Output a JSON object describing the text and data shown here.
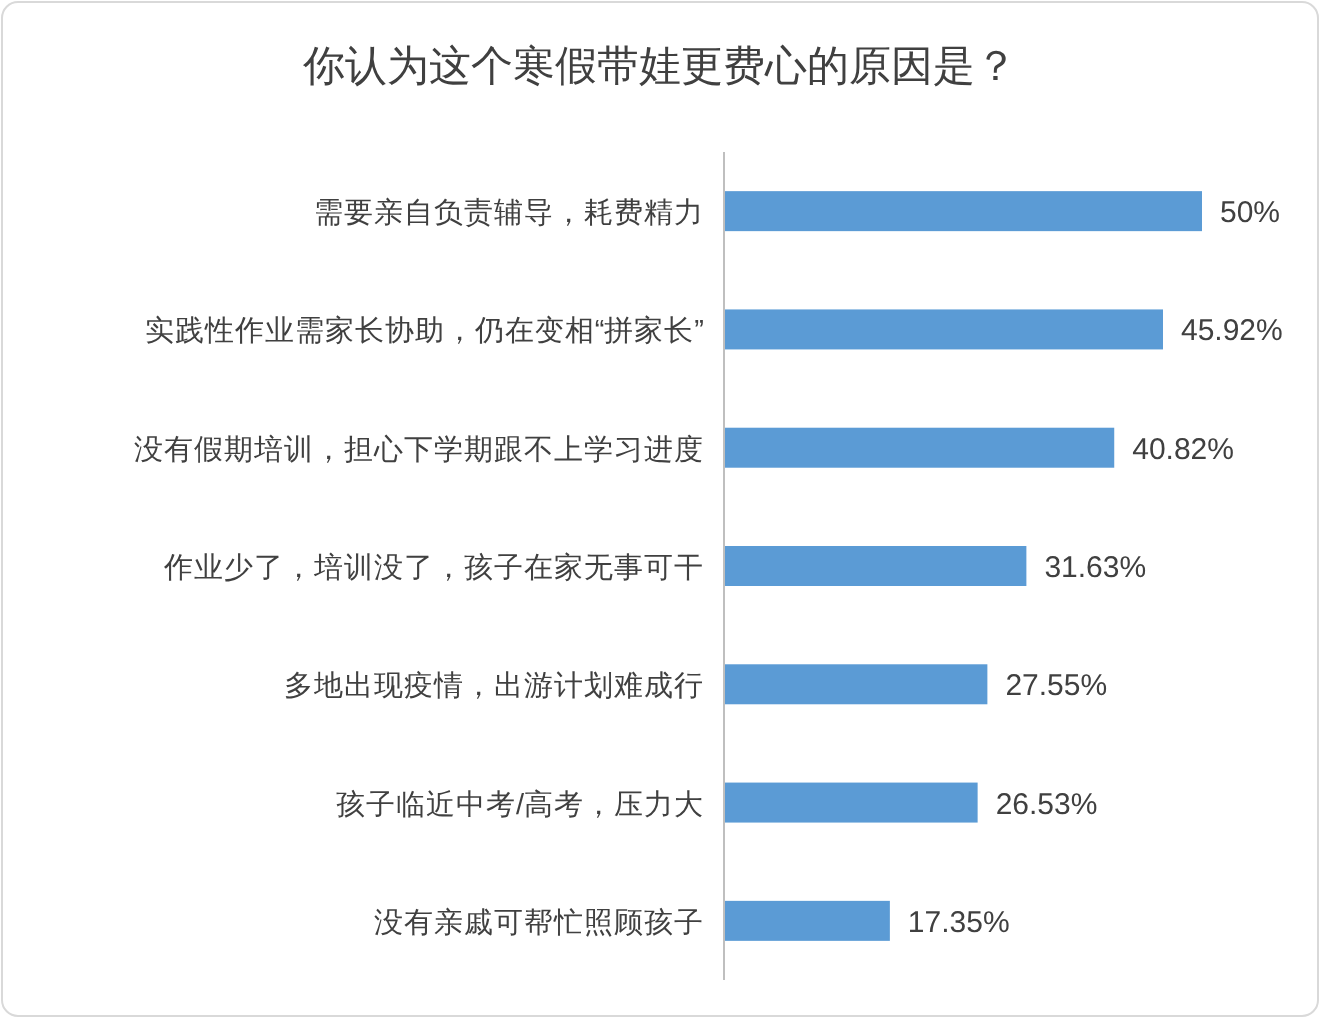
{
  "chart_data": {
    "type": "bar",
    "orientation": "horizontal",
    "title": "你认为这个寒假带娃更费心的原因是？",
    "categories": [
      "需要亲自负责辅导，耗费精力",
      "实践性作业需家长协助，仍在变相“拼家长”",
      "没有假期培训，担心下学期跟不上学习进度",
      "作业少了，培训没了，孩子在家无事可干",
      "多地出现疫情，出游计划难成行",
      "孩子临近中考/高考，压力大",
      "没有亲戚可帮忙照顾孩子"
    ],
    "values": [
      50,
      45.92,
      40.82,
      31.63,
      27.55,
      26.53,
      17.35
    ],
    "value_labels": [
      "50%",
      "45.92%",
      "40.82%",
      "31.63%",
      "27.55%",
      "26.53%",
      "17.35%"
    ],
    "color": "#5b9bd5"
  }
}
